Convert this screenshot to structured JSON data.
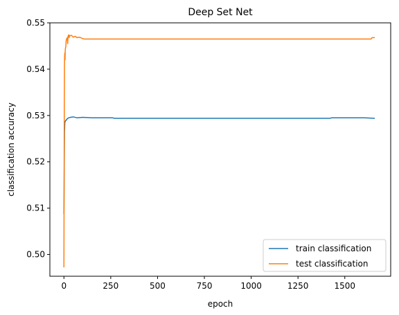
{
  "chart_data": {
    "type": "line",
    "title": "Deep Set Net",
    "xlabel": "epoch",
    "ylabel": "classification accuracy",
    "xlim": [
      -75,
      1745
    ],
    "ylim": [
      0.4953,
      0.55
    ],
    "xticks": [
      0,
      250,
      500,
      750,
      1000,
      1250,
      1500
    ],
    "yticks": [
      0.5,
      0.51,
      0.52,
      0.53,
      0.54,
      0.55
    ],
    "ytick_labels": [
      "0.50",
      "0.51",
      "0.52",
      "0.53",
      "0.54",
      "0.55"
    ],
    "grid": false,
    "legend_position": "lower-right",
    "series": [
      {
        "name": "train classification",
        "color": "#1f77b4",
        "x": [
          0,
          1,
          2,
          3,
          5,
          8,
          12,
          18,
          25,
          35,
          50,
          70,
          100,
          150,
          200,
          260,
          270,
          300,
          500,
          1000,
          1420,
          1430,
          1500,
          1600,
          1660
        ],
        "y": [
          0.5087,
          0.514,
          0.521,
          0.5265,
          0.5285,
          0.5288,
          0.529,
          0.5293,
          0.5295,
          0.5296,
          0.5297,
          0.5295,
          0.5296,
          0.5295,
          0.5295,
          0.5295,
          0.5294,
          0.5294,
          0.5294,
          0.5294,
          0.5294,
          0.5295,
          0.5295,
          0.5295,
          0.5294
        ]
      },
      {
        "name": "test classification",
        "color": "#ff7f0e",
        "x": [
          0,
          1,
          2,
          3,
          4,
          5,
          6,
          7,
          8,
          10,
          12,
          15,
          18,
          20,
          22,
          25,
          28,
          30,
          35,
          40,
          45,
          50,
          55,
          60,
          70,
          80,
          90,
          100,
          110,
          200,
          500,
          1000,
          1500,
          1640,
          1645,
          1660
        ],
        "y": [
          0.4972,
          0.515,
          0.532,
          0.541,
          0.543,
          0.5435,
          0.542,
          0.544,
          0.5445,
          0.5448,
          0.5462,
          0.5466,
          0.5468,
          0.5455,
          0.5471,
          0.5474,
          0.5468,
          0.5473,
          0.5472,
          0.5473,
          0.5471,
          0.5469,
          0.547,
          0.5471,
          0.5468,
          0.5469,
          0.5468,
          0.5466,
          0.5465,
          0.5465,
          0.5465,
          0.5465,
          0.5465,
          0.5465,
          0.5468,
          0.5468
        ]
      }
    ]
  }
}
